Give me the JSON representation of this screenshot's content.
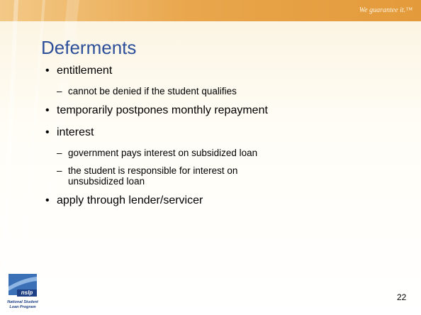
{
  "header": {
    "tagline": "We guarantee it.™"
  },
  "title": "Deferments",
  "bullets": [
    {
      "text": "entitlement",
      "sub": [
        "cannot be denied if the student qualifies"
      ]
    },
    {
      "text": "temporarily postpones monthly repayment",
      "sub": []
    },
    {
      "text": "interest",
      "sub": [
        "government pays interest on subsidized loan",
        "the student is responsible for interest on unsubsidized loan"
      ]
    },
    {
      "text": "apply through lender/servicer",
      "sub": []
    }
  ],
  "logo": {
    "mark": "nslp",
    "lines": [
      "National Student",
      "Loan Program"
    ]
  },
  "page_number": "22"
}
